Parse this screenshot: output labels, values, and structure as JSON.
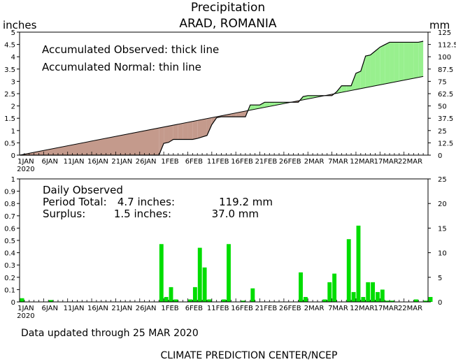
{
  "header": {
    "title": "Precipitation",
    "subtitle": "ARAD, ROMANIA",
    "left_unit": "inches",
    "right_unit": "mm"
  },
  "chart_data": [
    {
      "type": "area",
      "legend": [
        "Accumulated Observed: thick line",
        "Accumulated Normal: thin line"
      ],
      "x_ticks": [
        "1JAN",
        "6JAN",
        "11JAN",
        "16JAN",
        "21JAN",
        "26JAN",
        "1FEB",
        "6FEB",
        "11FEB",
        "16FEB",
        "21FEB",
        "26FEB",
        "2MAR",
        "7MAR",
        "12MAR",
        "17MAR",
        "22MAR"
      ],
      "x_year": "2020",
      "ylim_inches": [
        0,
        5
      ],
      "y_ticks_inches": [
        "0",
        "0.5",
        "1",
        "1.5",
        "2",
        "2.5",
        "3",
        "3.5",
        "4",
        "4.5",
        "5"
      ],
      "ylim_mm": [
        0,
        125
      ],
      "y_ticks_mm": [
        "0",
        "12.5",
        "25",
        "37.5",
        "50",
        "62.5",
        "75",
        "87.5",
        "100",
        "112.5",
        "125"
      ],
      "colors": {
        "deficit": "#c49a8c",
        "surplus": "#98f08e"
      },
      "observed": {
        "x": [
          0,
          29,
          30,
          31,
          32,
          33,
          34,
          35,
          36,
          37,
          39,
          40,
          41,
          42,
          43,
          44,
          45,
          46,
          47,
          48,
          49,
          50,
          51,
          52,
          53,
          54,
          55,
          56,
          57,
          58,
          59,
          60,
          61,
          62,
          63,
          64,
          65,
          66,
          67,
          68,
          69,
          70,
          71,
          72,
          73,
          74,
          75,
          76,
          77,
          78,
          79,
          80,
          81,
          82,
          83,
          84
        ],
        "y": [
          0,
          0,
          0.48,
          0.52,
          0.64,
          0.64,
          0.64,
          0.64,
          0.64,
          0.68,
          0.8,
          1.24,
          1.52,
          1.56,
          1.56,
          1.56,
          1.56,
          1.56,
          1.56,
          2.04,
          2.04,
          2.04,
          2.15,
          2.15,
          2.15,
          2.15,
          2.15,
          2.15,
          2.15,
          2.15,
          2.38,
          2.42,
          2.42,
          2.42,
          2.42,
          2.42,
          2.42,
          2.58,
          2.82,
          2.82,
          2.82,
          3.33,
          3.41,
          4.03,
          4.07,
          4.23,
          4.39,
          4.49,
          4.59,
          4.59,
          4.59,
          4.59,
          4.59,
          4.59,
          4.59,
          4.63
        ]
      },
      "normal": {
        "x": [
          0,
          84
        ],
        "y": [
          0,
          3.2
        ]
      }
    },
    {
      "type": "bar",
      "title": "Daily Observed",
      "period_total_label": "Period Total:",
      "period_total_inches": "4.7 inches:",
      "period_total_mm": "119.2 mm",
      "surplus_label": "Surplus:",
      "surplus_inches": "1.5 inches:",
      "surplus_mm": "37.0 mm",
      "color": "#00dd00",
      "ylim_inches": [
        0,
        1
      ],
      "y_ticks_inches": [
        "0",
        "0.1",
        "0.2",
        "0.3",
        "0.4",
        "0.5",
        "0.6",
        "0.7",
        "0.8",
        "0.9",
        "1"
      ],
      "ylim_mm": [
        0,
        25
      ],
      "y_ticks_mm": [
        "0",
        "5",
        "10",
        "15",
        "20",
        "25"
      ],
      "days": [
        1,
        7,
        30,
        31,
        32,
        33,
        36,
        37,
        38,
        39,
        40,
        43,
        44,
        47,
        49,
        59,
        60,
        64,
        65,
        66,
        69,
        70,
        71,
        72,
        73,
        74,
        75,
        76,
        77,
        78,
        83,
        85,
        86
      ],
      "values": [
        0.03,
        0.015,
        0.47,
        0.04,
        0.12,
        0.02,
        0.02,
        0.12,
        0.44,
        0.28,
        0.02,
        0.02,
        0.47,
        0.01,
        0.11,
        0.24,
        0.04,
        0.02,
        0.16,
        0.23,
        0.51,
        0.08,
        0.62,
        0.04,
        0.16,
        0.16,
        0.08,
        0.1,
        0.01,
        0.01,
        0.02,
        0.01,
        0.04
      ]
    }
  ],
  "footer": {
    "updated": "Data updated through 25 MAR 2020",
    "credit": "CLIMATE PREDICTION CENTER/NCEP"
  }
}
